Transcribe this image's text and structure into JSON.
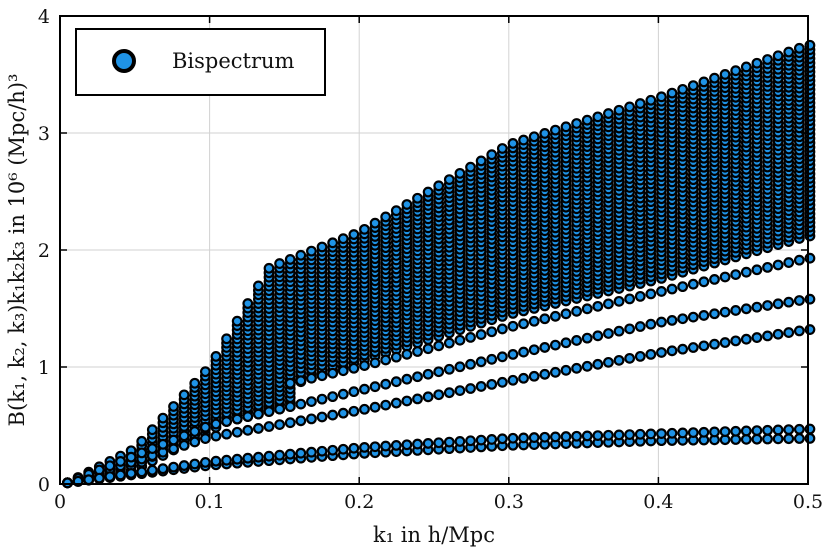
{
  "chart_data": {
    "type": "scatter",
    "title": "",
    "xlabel": "k₁ in h/Mpc",
    "ylabel": "B(k₁, k₂, k₃)k₁k₂k₃ in 10⁶ (Mpc/h)³",
    "xlim": [
      0,
      0.5
    ],
    "ylim": [
      0,
      4
    ],
    "xticks": [
      0,
      0.1,
      0.2,
      0.3,
      0.4,
      0.5
    ],
    "xtick_labels": [
      "0",
      "0.1",
      "0.2",
      "0.3",
      "0.4",
      "0.5"
    ],
    "yticks": [
      0,
      1,
      2,
      3,
      4
    ],
    "ytick_labels": [
      "0",
      "1",
      "2",
      "3",
      "4"
    ],
    "grid": true,
    "legend": {
      "position": "top-left",
      "entries": [
        "Bispectrum"
      ]
    },
    "marker_color": "#1f93e6",
    "marker_edge": "#000000",
    "series": [
      {
        "name": "Bispectrum",
        "k1_start": 0.005,
        "k1_step": 0.00709,
        "k1_count": 71,
        "envelope": {
          "k1": [
            0.005,
            0.05,
            0.1,
            0.14,
            0.2,
            0.3,
            0.4,
            0.5
          ],
          "upper": [
            0.01,
            0.3,
            1.0,
            1.85,
            2.15,
            2.9,
            3.3,
            3.75
          ],
          "dense_lower": [
            0.01,
            0.12,
            0.45,
            0.78,
            1.05,
            1.45,
            1.75,
            2.12
          ],
          "ladder_lower_k1_max": 0.16
        },
        "lower_bands": [
          {
            "k1": [
              0.005,
              0.1,
              0.2,
              0.3,
              0.4,
              0.5
            ],
            "values": [
              0.01,
              0.4,
              0.63,
              0.88,
              1.12,
              1.32
            ]
          },
          {
            "k1": [
              0.005,
              0.1,
              0.2,
              0.3,
              0.4,
              0.5
            ],
            "values": [
              0.01,
              0.5,
              0.8,
              1.1,
              1.38,
              1.58
            ]
          },
          {
            "k1": [
              0.15,
              0.2,
              0.3,
              0.4,
              0.5
            ],
            "values": [
              0.85,
              1.0,
              1.34,
              1.64,
              1.93
            ]
          },
          {
            "k1": [
              0.005,
              0.1,
              0.2,
              0.3,
              0.4,
              0.5
            ],
            "values": [
              0.01,
              0.16,
              0.26,
              0.33,
              0.37,
              0.39
            ]
          },
          {
            "k1": [
              0.005,
              0.1,
              0.2,
              0.3,
              0.4,
              0.5
            ],
            "values": [
              0.01,
              0.19,
              0.31,
              0.39,
              0.43,
              0.47
            ]
          }
        ]
      }
    ]
  }
}
